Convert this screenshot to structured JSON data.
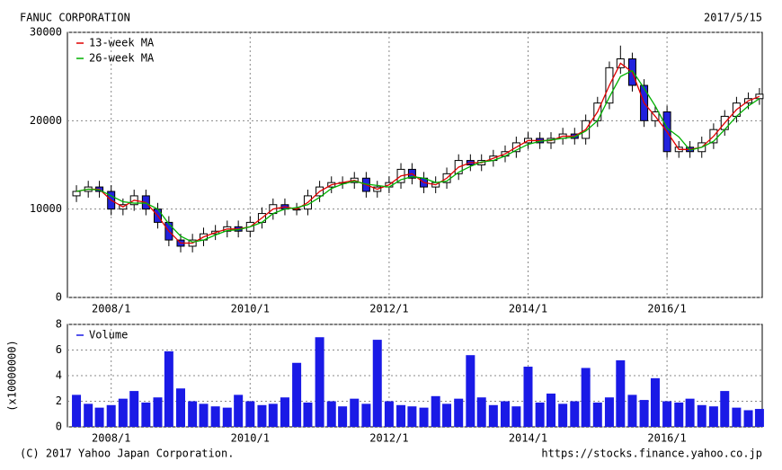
{
  "chart_data": [
    {
      "type": "candlestick",
      "title": "FANUC CORPORATION",
      "date": "2017/5/15",
      "x": [
        2007.5,
        2007.67,
        2007.83,
        2008,
        2008.17,
        2008.33,
        2008.5,
        2008.67,
        2008.83,
        2009,
        2009.17,
        2009.33,
        2009.5,
        2009.67,
        2009.83,
        2010,
        2010.17,
        2010.33,
        2010.5,
        2010.67,
        2010.83,
        2011,
        2011.17,
        2011.33,
        2011.5,
        2011.67,
        2011.83,
        2012,
        2012.17,
        2012.33,
        2012.5,
        2012.67,
        2012.83,
        2013,
        2013.17,
        2013.33,
        2013.5,
        2013.67,
        2013.83,
        2014,
        2014.17,
        2014.33,
        2014.5,
        2014.67,
        2014.83,
        2015,
        2015.17,
        2015.33,
        2015.5,
        2015.67,
        2015.83,
        2016,
        2016.17,
        2016.33,
        2016.5,
        2016.67,
        2016.83,
        2017,
        2017.17,
        2017.33
      ],
      "open": [
        11500,
        12000,
        12500,
        12000,
        10000,
        10500,
        11500,
        10000,
        8500,
        6500,
        5800,
        6500,
        7200,
        7500,
        8000,
        7500,
        8500,
        9500,
        10500,
        10000,
        10000,
        11500,
        12500,
        13000,
        13000,
        13500,
        12000,
        12500,
        13000,
        14500,
        13500,
        12500,
        13000,
        14000,
        15500,
        15000,
        15500,
        16000,
        16500,
        17500,
        18000,
        17500,
        18000,
        18500,
        18000,
        20000,
        22000,
        26000,
        27000,
        24000,
        20000,
        21000,
        16500,
        17000,
        16500,
        17500,
        19000,
        20500,
        22000,
        22500
      ],
      "high": [
        12700,
        13200,
        13200,
        12700,
        11200,
        12200,
        12200,
        10700,
        9200,
        7200,
        7200,
        7900,
        8200,
        8700,
        8700,
        9200,
        10200,
        11200,
        11200,
        10700,
        12200,
        13200,
        13700,
        13700,
        14200,
        14200,
        13200,
        13700,
        15200,
        15200,
        14200,
        13700,
        14700,
        16200,
        16200,
        16200,
        16700,
        17200,
        18200,
        18700,
        18700,
        18700,
        19200,
        19200,
        20700,
        22700,
        26700,
        28500,
        27700,
        24700,
        21700,
        21700,
        17700,
        17700,
        18200,
        19700,
        21200,
        22700,
        23200,
        23700
      ],
      "low": [
        10800,
        11300,
        11300,
        9300,
        9300,
        9800,
        9300,
        7800,
        5800,
        5100,
        5100,
        5800,
        6500,
        6800,
        6800,
        6800,
        7800,
        8800,
        9300,
        9300,
        9300,
        10800,
        11800,
        12300,
        12300,
        11300,
        11300,
        11800,
        12300,
        12800,
        11800,
        11800,
        12300,
        13300,
        14300,
        14300,
        14800,
        15300,
        15800,
        16800,
        16800,
        16800,
        17300,
        17300,
        17300,
        19300,
        21300,
        25300,
        23300,
        19300,
        19300,
        15800,
        15800,
        15800,
        15800,
        16800,
        18300,
        19800,
        21300,
        21800
      ],
      "close": [
        12000,
        12500,
        12000,
        10000,
        10500,
        11500,
        10000,
        8500,
        6500,
        5800,
        6500,
        7200,
        7500,
        8000,
        7500,
        8500,
        9500,
        10500,
        10000,
        10000,
        11500,
        12500,
        13000,
        13000,
        13500,
        12000,
        12500,
        13000,
        14500,
        13500,
        12500,
        13000,
        14000,
        15500,
        15000,
        15500,
        16000,
        16500,
        17500,
        18000,
        17500,
        18000,
        18500,
        18000,
        20000,
        22000,
        26000,
        27000,
        24000,
        20000,
        21000,
        16500,
        17000,
        16500,
        17500,
        19000,
        20500,
        22000,
        22500,
        23000
      ],
      "color_up": "#ffffff",
      "color_down": "#2222dd",
      "series": [
        {
          "name": "13-week MA",
          "color": "#e00000",
          "values": [
            12000,
            12250,
            12250,
            11000,
            10250,
            11000,
            10750,
            9250,
            7500,
            6150,
            6150,
            6850,
            7350,
            7750,
            7750,
            8000,
            9000,
            10000,
            10250,
            10000,
            10750,
            12000,
            12750,
            13000,
            13250,
            12750,
            12250,
            12750,
            13750,
            14000,
            13000,
            12750,
            13500,
            14750,
            15250,
            15250,
            15750,
            16250,
            17000,
            17750,
            17750,
            17750,
            18250,
            18250,
            19000,
            21000,
            24000,
            26500,
            25500,
            22000,
            20500,
            18750,
            16750,
            16750,
            17000,
            18250,
            19750,
            21250,
            22250,
            22750
          ]
        },
        {
          "name": "26-week MA",
          "color": "#00b000",
          "values": [
            12000,
            12250,
            12170,
            11500,
            10830,
            10670,
            10670,
            10000,
            8330,
            6930,
            6270,
            6500,
            7070,
            7570,
            7670,
            8000,
            8500,
            9500,
            10000,
            10170,
            10500,
            11330,
            12330,
            12830,
            13170,
            12830,
            12670,
            12500,
            13330,
            13670,
            13500,
            13000,
            13170,
            14170,
            14830,
            15330,
            15500,
            16000,
            16670,
            17330,
            17670,
            17830,
            18000,
            18170,
            18830,
            20000,
            22670,
            25000,
            25670,
            23670,
            21670,
            19170,
            18170,
            16670,
            17000,
            17670,
            19000,
            20500,
            21670,
            22500
          ]
        }
      ],
      "xlim": [
        2007.37,
        2017.37
      ],
      "xticks": [
        {
          "value": 2008,
          "label": "2008/1"
        },
        {
          "value": 2010,
          "label": "2010/1"
        },
        {
          "value": 2012,
          "label": "2012/1"
        },
        {
          "value": 2014,
          "label": "2014/1"
        },
        {
          "value": 2016,
          "label": "2016/1"
        }
      ],
      "ylim": [
        0,
        30000
      ],
      "yticks": [
        0,
        10000,
        20000,
        30000
      ],
      "grid": true,
      "legend": "upper left"
    },
    {
      "type": "bar",
      "ylabel": "(x10000000)",
      "x": [
        2007.5,
        2007.67,
        2007.83,
        2008,
        2008.17,
        2008.33,
        2008.5,
        2008.67,
        2008.83,
        2009,
        2009.17,
        2009.33,
        2009.5,
        2009.67,
        2009.83,
        2010,
        2010.17,
        2010.33,
        2010.5,
        2010.67,
        2010.83,
        2011,
        2011.17,
        2011.33,
        2011.5,
        2011.67,
        2011.83,
        2012,
        2012.17,
        2012.33,
        2012.5,
        2012.67,
        2012.83,
        2013,
        2013.17,
        2013.33,
        2013.5,
        2013.67,
        2013.83,
        2014,
        2014.17,
        2014.33,
        2014.5,
        2014.67,
        2014.83,
        2015,
        2015.17,
        2015.33,
        2015.5,
        2015.67,
        2015.83,
        2016,
        2016.17,
        2016.33,
        2016.5,
        2016.67,
        2016.83,
        2017,
        2017.17,
        2017.33
      ],
      "series": [
        {
          "name": "Volume",
          "color": "#1a1ae6",
          "values": [
            2.5,
            1.8,
            1.5,
            1.7,
            2.2,
            2.8,
            1.9,
            2.3,
            5.9,
            3.0,
            2.0,
            1.8,
            1.6,
            1.5,
            2.5,
            2.0,
            1.7,
            1.8,
            2.3,
            5.0,
            1.9,
            7.0,
            2.0,
            1.6,
            2.2,
            1.8,
            6.8,
            2.0,
            1.7,
            1.6,
            1.5,
            2.4,
            1.8,
            2.2,
            5.6,
            2.3,
            1.7,
            2.0,
            1.6,
            4.7,
            1.9,
            2.6,
            1.8,
            2.0,
            4.6,
            1.9,
            2.3,
            5.2,
            2.5,
            2.1,
            3.8,
            2.0,
            1.9,
            2.2,
            1.7,
            1.6,
            2.8,
            1.5,
            1.3,
            1.4
          ]
        }
      ],
      "xlim": [
        2007.37,
        2017.37
      ],
      "xticks": [
        {
          "value": 2008,
          "label": "2008/1"
        },
        {
          "value": 2010,
          "label": "2010/1"
        },
        {
          "value": 2012,
          "label": "2012/1"
        },
        {
          "value": 2014,
          "label": "2014/1"
        },
        {
          "value": 2016,
          "label": "2016/1"
        }
      ],
      "ylim": [
        0,
        8
      ],
      "yticks": [
        0,
        2,
        4,
        6,
        8
      ],
      "grid": true,
      "legend": "upper left"
    }
  ],
  "footer": {
    "copyright": "(C) 2017 Yahoo Japan Corporation.",
    "url": "https://stocks.finance.yahoo.co.jp"
  }
}
